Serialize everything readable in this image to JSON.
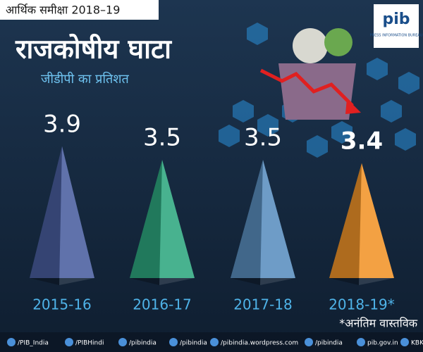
{
  "header": "आर्थिक समीक्षा 2018–19",
  "logo": {
    "name": "pib",
    "subtitle": "PRESS INFORMATION BUREAU"
  },
  "chart_data": {
    "type": "pyramid",
    "title": "राजकोषीय घाटा",
    "subtitle": "जीडीपी का प्रतिशत",
    "categories": [
      "2015-16",
      "2016-17",
      "2017-18",
      "2018-19*"
    ],
    "values": [
      3.9,
      3.5,
      3.5,
      3.4
    ],
    "colors": [
      "#4a5fa0",
      "#2fa880",
      "#5a8fc0",
      "#f2952a"
    ],
    "note": "*अनंतिम वास्तविक"
  },
  "footer": [
    "/PIB_India",
    "/PIBHindi",
    "/pibindia",
    "/pibindia",
    "/pibindia.wordpress.com",
    "/pibindia",
    "pib.gov.in",
    "KBK"
  ]
}
